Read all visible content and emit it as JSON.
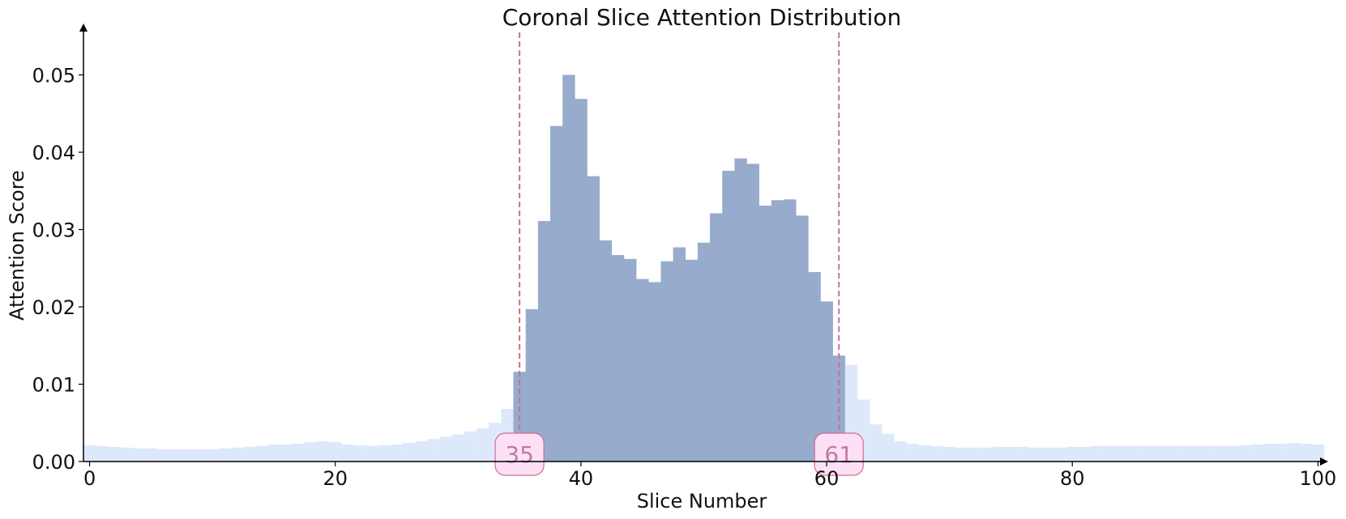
{
  "chart_data": {
    "type": "bar",
    "title": "Coronal Slice Attention Distribution",
    "xlabel": "Slice Number",
    "ylabel": "Attention Score",
    "xlim": [
      -0.5,
      100.5
    ],
    "ylim": [
      0,
      0.0555
    ],
    "xticks": [
      0,
      20,
      40,
      60,
      80,
      100
    ],
    "yticks": [
      "0.00",
      "0.01",
      "0.02",
      "0.03",
      "0.04",
      "0.05"
    ],
    "grid": false,
    "highlight_range": [
      35,
      61
    ],
    "markers": [
      {
        "label": "35",
        "x": 35
      },
      {
        "label": "61",
        "x": 61
      }
    ],
    "x": [
      0,
      1,
      2,
      3,
      4,
      5,
      6,
      7,
      8,
      9,
      10,
      11,
      12,
      13,
      14,
      15,
      16,
      17,
      18,
      19,
      20,
      21,
      22,
      23,
      24,
      25,
      26,
      27,
      28,
      29,
      30,
      31,
      32,
      33,
      34,
      35,
      36,
      37,
      38,
      39,
      40,
      41,
      42,
      43,
      44,
      45,
      46,
      47,
      48,
      49,
      50,
      51,
      52,
      53,
      54,
      55,
      56,
      57,
      58,
      59,
      60,
      61,
      62,
      63,
      64,
      65,
      66,
      67,
      68,
      69,
      70,
      71,
      72,
      73,
      74,
      75,
      76,
      77,
      78,
      79,
      80,
      81,
      82,
      83,
      84,
      85,
      86,
      87,
      88,
      89,
      90,
      91,
      92,
      93,
      94,
      95,
      96,
      97,
      98,
      99,
      100
    ],
    "values": [
      0.0021,
      0.002,
      0.0019,
      0.0018,
      0.0017,
      0.0017,
      0.0016,
      0.0016,
      0.0016,
      0.0016,
      0.0016,
      0.0017,
      0.0018,
      0.0019,
      0.002,
      0.0022,
      0.0022,
      0.0023,
      0.0025,
      0.0026,
      0.0025,
      0.0022,
      0.0021,
      0.002,
      0.0021,
      0.0022,
      0.0024,
      0.0026,
      0.0029,
      0.0032,
      0.0035,
      0.0039,
      0.0043,
      0.005,
      0.0068,
      0.0116,
      0.0197,
      0.0311,
      0.0434,
      0.05,
      0.0469,
      0.0369,
      0.0286,
      0.0267,
      0.0262,
      0.0236,
      0.0232,
      0.0259,
      0.0277,
      0.0261,
      0.0283,
      0.0321,
      0.0376,
      0.0392,
      0.0385,
      0.0331,
      0.0338,
      0.0339,
      0.0318,
      0.0245,
      0.0207,
      0.0137,
      0.0125,
      0.008,
      0.0048,
      0.0036,
      0.0026,
      0.0023,
      0.0021,
      0.002,
      0.0019,
      0.0018,
      0.0018,
      0.0018,
      0.0019,
      0.0019,
      0.0019,
      0.0018,
      0.0018,
      0.0018,
      0.0019,
      0.0019,
      0.002,
      0.002,
      0.002,
      0.002,
      0.002,
      0.002,
      0.002,
      0.002,
      0.002,
      0.002,
      0.002,
      0.002,
      0.0021,
      0.0022,
      0.0023,
      0.0023,
      0.0024,
      0.0023,
      0.0022
    ],
    "colors": {
      "highlight_bar": "#97abcc",
      "base_bar": "#dde9fb",
      "marker_line": "#cc6e96",
      "marker_fill": "#fde0f4",
      "marker_text": "#c07aa6",
      "axis": "#000000"
    }
  }
}
